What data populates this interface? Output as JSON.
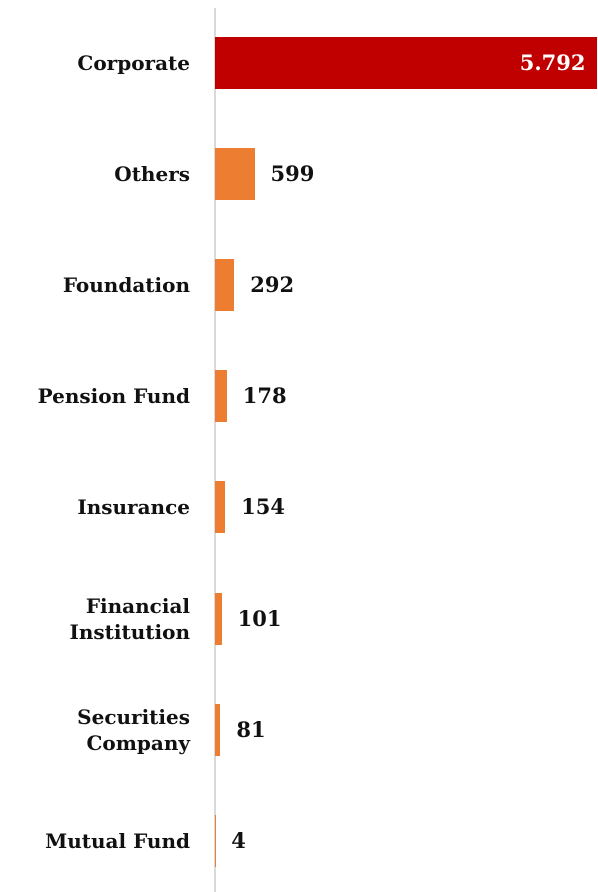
{
  "chart_data": {
    "type": "hbar",
    "categories": [
      "Corporate",
      "Others",
      "Foundation",
      "Pension Fund",
      "Insurance",
      "Financial\nInstitution",
      "Securities\nCompany",
      "Mutual Fund"
    ],
    "values": [
      5792,
      599,
      292,
      178,
      154,
      101,
      81,
      4
    ],
    "value_labels": [
      "5.792",
      "599",
      "292",
      "178",
      "154",
      "101",
      "81",
      "4"
    ],
    "colors": [
      "#c00000",
      "#ed7d31",
      "#ed7d31",
      "#ed7d31",
      "#ed7d31",
      "#ed7d31",
      "#ed7d31",
      "#ed7d31"
    ],
    "xlim": [
      0,
      5800
    ]
  }
}
